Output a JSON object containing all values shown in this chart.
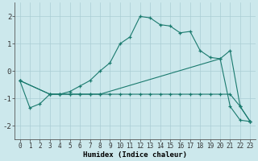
{
  "xlabel": "Humidex (Indice chaleur)",
  "bg_color": "#cce8ec",
  "grid_color": "#aacdd4",
  "line_color": "#1a7a6e",
  "xlim": [
    -0.5,
    23.5
  ],
  "ylim": [
    -2.5,
    2.5
  ],
  "xticks": [
    0,
    1,
    2,
    3,
    4,
    5,
    6,
    7,
    8,
    9,
    10,
    11,
    12,
    13,
    14,
    15,
    16,
    17,
    18,
    19,
    20,
    21,
    22,
    23
  ],
  "yticks": [
    -2,
    -1,
    0,
    1,
    2
  ],
  "line1_x": [
    0,
    1,
    2,
    3,
    4,
    5,
    6,
    7,
    8,
    9,
    10,
    11,
    12,
    13,
    14,
    15,
    16,
    17,
    18,
    19,
    20,
    21,
    22,
    23
  ],
  "line1_y": [
    -0.35,
    -1.35,
    -1.2,
    -0.85,
    -0.85,
    -0.75,
    -0.55,
    -0.35,
    0.0,
    0.3,
    1.0,
    1.25,
    2.0,
    1.95,
    1.7,
    1.65,
    1.4,
    1.45,
    0.75,
    0.5,
    0.45,
    -1.3,
    -1.8,
    -1.85
  ],
  "line2_x": [
    0,
    3,
    4,
    5,
    6,
    7,
    8,
    20,
    21,
    22,
    23
  ],
  "line2_y": [
    -0.35,
    -0.85,
    -0.85,
    -0.85,
    -0.85,
    -0.85,
    -0.85,
    0.45,
    0.75,
    -1.3,
    -1.85
  ],
  "line3_x": [
    0,
    3,
    4,
    5,
    6,
    7,
    8,
    9,
    10,
    11,
    12,
    13,
    14,
    15,
    16,
    17,
    18,
    19,
    20,
    21,
    22,
    23
  ],
  "line3_y": [
    -0.35,
    -0.85,
    -0.85,
    -0.85,
    -0.85,
    -0.85,
    -0.85,
    -0.85,
    -0.85,
    -0.85,
    -0.85,
    -0.85,
    -0.85,
    -0.85,
    -0.85,
    -0.85,
    -0.85,
    -0.85,
    -0.85,
    -0.85,
    -1.3,
    -1.85
  ]
}
